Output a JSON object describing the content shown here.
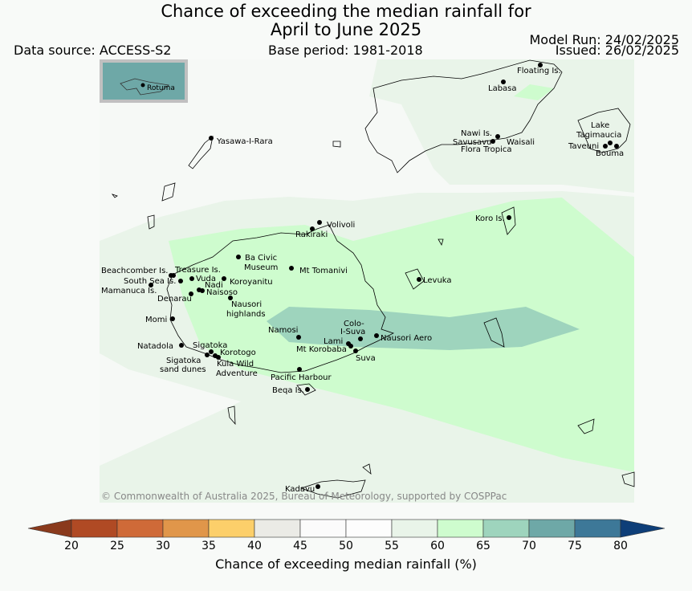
{
  "title_line1": "Chance of exceeding the median rainfall for",
  "title_line2": "April to June 2025",
  "data_source": "Data source: ACCESS-S2",
  "base_period": "Base period: 1981-2018",
  "model_run": "Model Run: 24/02/2025",
  "issued": "Issued: 26/02/2025",
  "inset_label": "Rotuma",
  "copyright": "© Commonwealth of Australia 2025, Bureau of Meteorology, supported by COSPPac",
  "places": [
    {
      "name": "Floating Is."
    },
    {
      "name": "Labasa"
    },
    {
      "name": "Nawi Is."
    },
    {
      "name": "Savusavu"
    },
    {
      "name": "Waisali"
    },
    {
      "name": "Flora Tropica"
    },
    {
      "name": "Lake"
    },
    {
      "name": "Tagimaucia"
    },
    {
      "name": "Taveuni"
    },
    {
      "name": "Bouma"
    },
    {
      "name": "Yasawa-I-Rara"
    },
    {
      "name": "Koro Is."
    },
    {
      "name": "Volivoli"
    },
    {
      "name": "Rakiraki"
    },
    {
      "name": "Ba Civic"
    },
    {
      "name": "Museum"
    },
    {
      "name": "Mt Tomanivi"
    },
    {
      "name": "Levuka"
    },
    {
      "name": "Beachcomber Is."
    },
    {
      "name": "Treasure Is."
    },
    {
      "name": "South Sea Is."
    },
    {
      "name": "Vuda"
    },
    {
      "name": "Koroyanitu"
    },
    {
      "name": "Mamanuca Is."
    },
    {
      "name": "Nadi"
    },
    {
      "name": "Naisoso"
    },
    {
      "name": "Denarau"
    },
    {
      "name": "Nausori"
    },
    {
      "name": "highlands"
    },
    {
      "name": "Momi"
    },
    {
      "name": "Colo-"
    },
    {
      "name": "I-Suva"
    },
    {
      "name": "Namosi"
    },
    {
      "name": "Lami"
    },
    {
      "name": "Nausori Aero"
    },
    {
      "name": "Natadola"
    },
    {
      "name": "Sigatoka"
    },
    {
      "name": "Mt Korobaba"
    },
    {
      "name": "Korotogo"
    },
    {
      "name": "Suva"
    },
    {
      "name": "Sigatoka"
    },
    {
      "name": "sand dunes"
    },
    {
      "name": "Kula Wild"
    },
    {
      "name": "Adventure"
    },
    {
      "name": "Pacific Harbour"
    },
    {
      "name": "Beqa Is."
    },
    {
      "name": "Kadavu"
    }
  ],
  "colorbar": {
    "label": "Chance of exceeding median rainfall (%)",
    "ticks": [
      "20",
      "25",
      "30",
      "35",
      "40",
      "45",
      "50",
      "55",
      "60",
      "65",
      "70",
      "75",
      "80"
    ],
    "under_color": "#8a3a1c",
    "over_color": "#0e3e78",
    "colors": [
      "#b04a24",
      "#cf6a38",
      "#e0964a",
      "#fccf6a",
      "#ebebe6",
      "#fbfbfb",
      "#fdfdfd",
      "#e9f4e9",
      "#cefcce",
      "#9ed4bd",
      "#6ea8a7",
      "#3d7898"
    ]
  }
}
